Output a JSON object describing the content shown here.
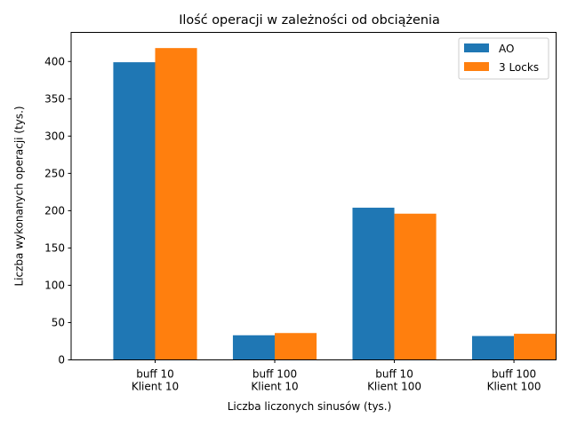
{
  "chart_data": {
    "type": "bar",
    "title": "Ilość operacji w zależności od obciążenia",
    "xlabel": "Liczba liczonych sinusów (tys.)",
    "ylabel": "Liczba wykonanych operacji (tys.)",
    "categories": [
      [
        "buff 10",
        "Klient 10"
      ],
      [
        "buff 100",
        "Klient 10"
      ],
      [
        "buff 10",
        "Klient 100"
      ],
      [
        "buff 100",
        "Klient 100"
      ]
    ],
    "series": [
      {
        "name": "AO",
        "color": "#1f77b4",
        "values": [
          399,
          33,
          204,
          32
        ]
      },
      {
        "name": "3 Locks",
        "color": "#ff7f0e",
        "values": [
          418,
          36,
          196,
          35
        ]
      }
    ],
    "yticks": [
      0,
      50,
      100,
      150,
      200,
      250,
      300,
      350,
      400
    ],
    "ylim": [
      0,
      439
    ],
    "grid": false,
    "legend": "top-right"
  }
}
